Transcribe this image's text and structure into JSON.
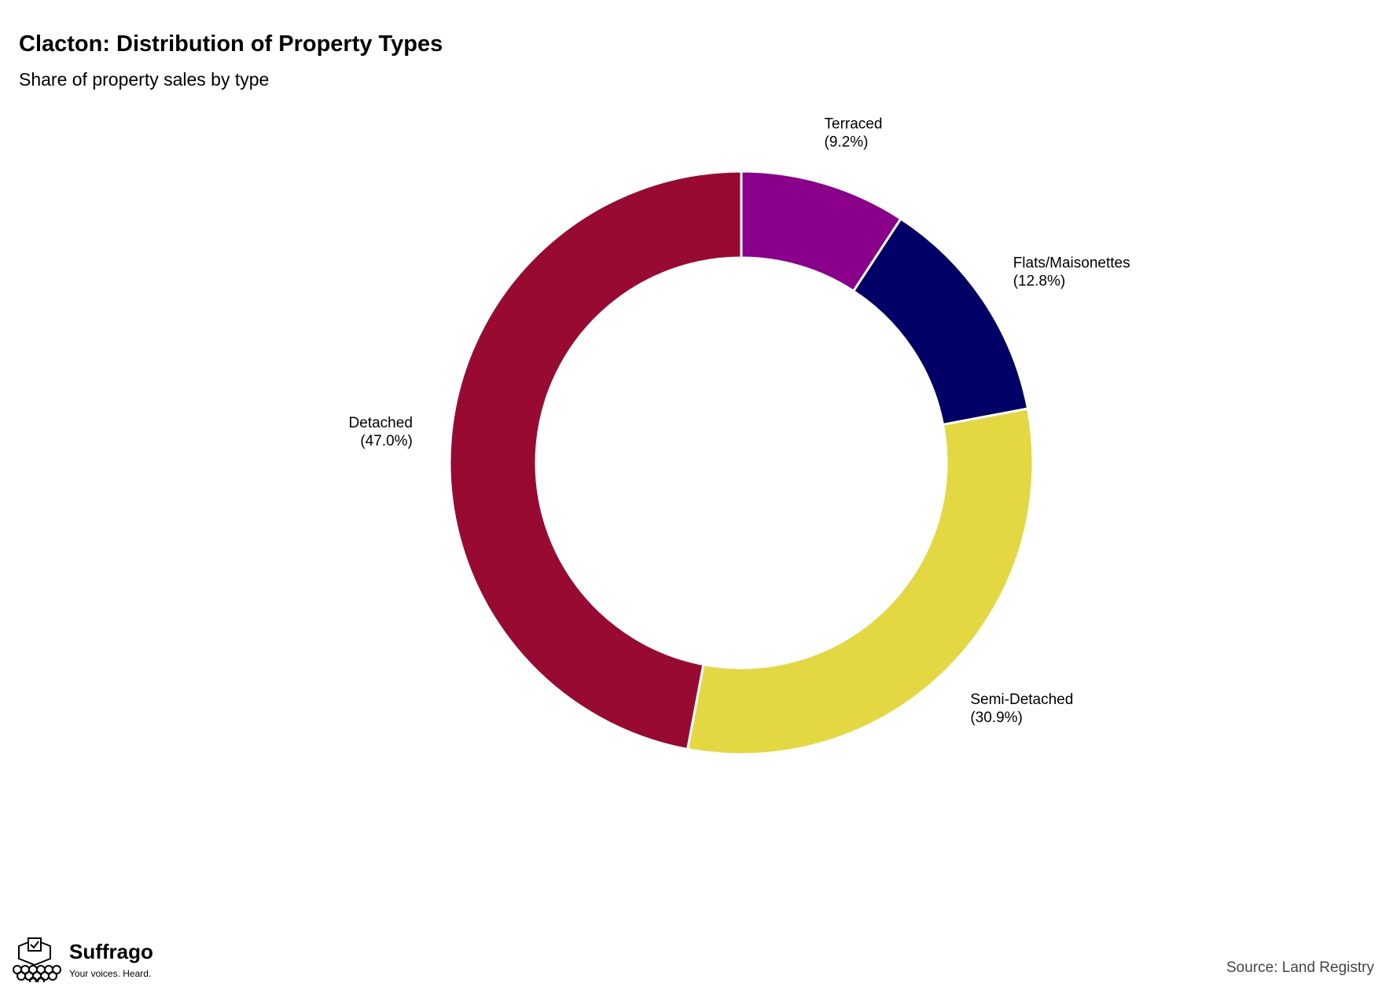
{
  "chart_data": {
    "type": "pie",
    "title": "Clacton: Distribution of Property Types",
    "subtitle": "Share of property sales by type",
    "donut": true,
    "slices": [
      {
        "label": "Terraced",
        "value": 9.2,
        "display": "(9.2%)",
        "color": "#8B008B"
      },
      {
        "label": "Flats/Maisonettes",
        "value": 12.8,
        "display": "(12.8%)",
        "color": "#000066"
      },
      {
        "label": "Semi-Detached",
        "value": 30.9,
        "display": "(30.9%)",
        "color": "#E3D842"
      },
      {
        "label": "Detached",
        "value": 47.0,
        "display": "(47.0%)",
        "color": "#990A32"
      }
    ]
  },
  "footer": {
    "brand": "Suffrago",
    "tagline": "Your voices. Heard.",
    "source": "Source: Land Registry"
  }
}
